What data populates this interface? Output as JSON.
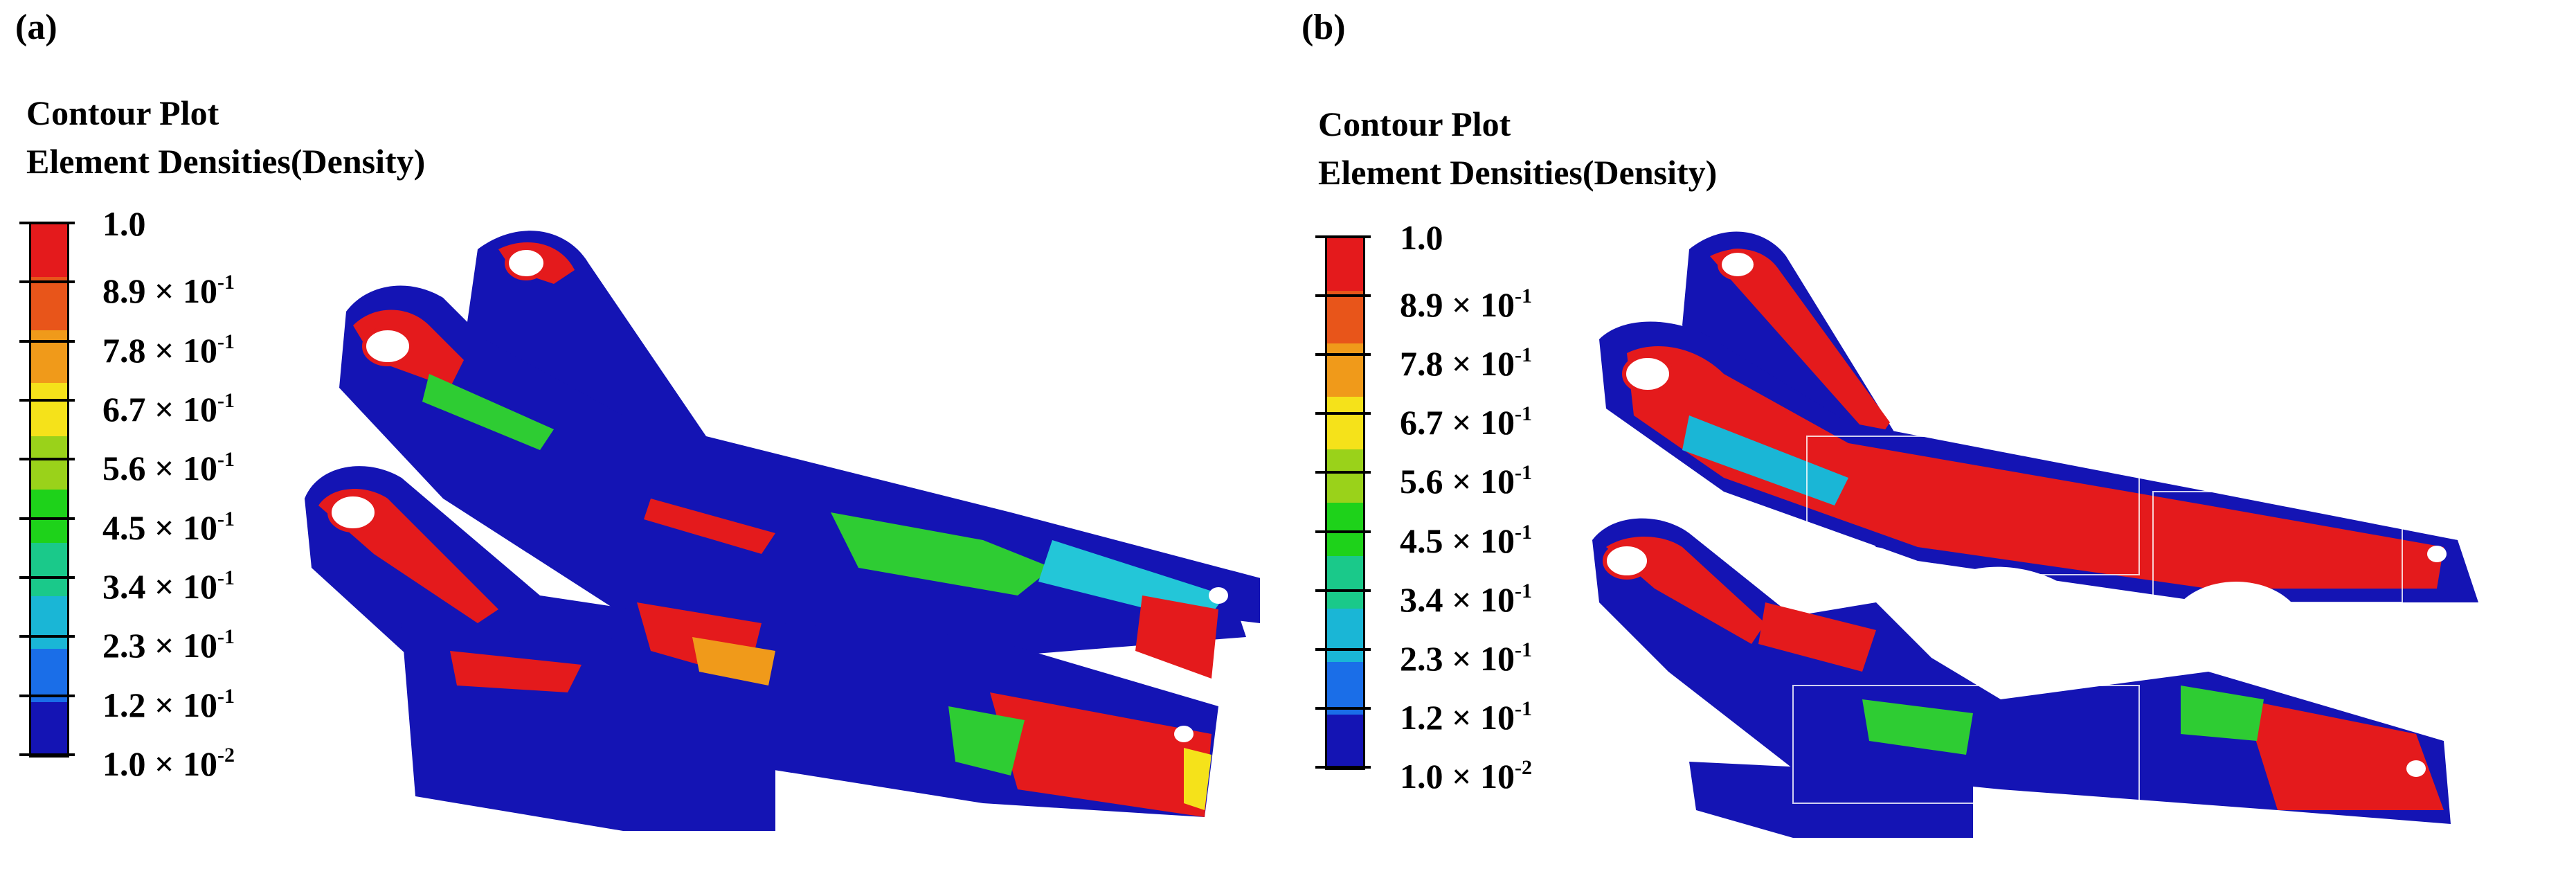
{
  "panels": [
    {
      "label": "(a)",
      "heading_line1": "Contour Plot",
      "heading_line2": "Element Densities(Density)",
      "legend": [
        {
          "base": "1.0",
          "exp": ""
        },
        {
          "base": "8.9 × 10",
          "exp": "-1"
        },
        {
          "base": "7.8 × 10",
          "exp": "-1"
        },
        {
          "base": "6.7 × 10",
          "exp": "-1"
        },
        {
          "base": "5.6 × 10",
          "exp": "-1"
        },
        {
          "base": "4.5 × 10",
          "exp": "-1"
        },
        {
          "base": "3.4 × 10",
          "exp": "-1"
        },
        {
          "base": "2.3 × 10",
          "exp": "-1"
        },
        {
          "base": "1.2 × 10",
          "exp": "-1"
        },
        {
          "base": "1.0 × 10",
          "exp": "-2"
        }
      ]
    },
    {
      "label": "(b)",
      "heading_line1": "Contour Plot",
      "heading_line2": "Element Densities(Density)",
      "legend": [
        {
          "base": "1.0",
          "exp": ""
        },
        {
          "base": "8.9 × 10",
          "exp": "-1"
        },
        {
          "base": "7.8 × 10",
          "exp": "-1"
        },
        {
          "base": "6.7 × 10",
          "exp": "-1"
        },
        {
          "base": "5.6 × 10",
          "exp": "-1"
        },
        {
          "base": "4.5 × 10",
          "exp": "-1"
        },
        {
          "base": "3.4 × 10",
          "exp": "-1"
        },
        {
          "base": "2.3 × 10",
          "exp": "-1"
        },
        {
          "base": "1.2 × 10",
          "exp": "-1"
        },
        {
          "base": "1.0 × 10",
          "exp": "-2"
        }
      ]
    }
  ],
  "colors": {
    "scale": [
      "#e41a1c",
      "#e8551a",
      "#f09a1a",
      "#f5e21a",
      "#9ad21a",
      "#1ed21a",
      "#1ac98a",
      "#1ab6d6",
      "#1a6ee8",
      "#1414b4"
    ],
    "low_density": "#1414b4",
    "high_density": "#e41a1c",
    "mid_green": "#2ecc33",
    "mid_cyan": "#23c6d8"
  }
}
